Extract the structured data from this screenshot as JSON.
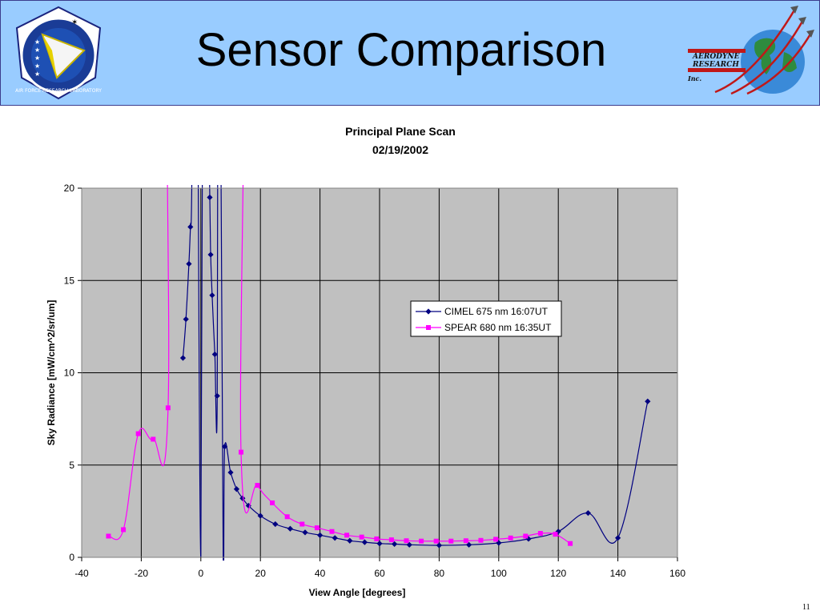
{
  "slide": {
    "title": "Sensor Comparison",
    "number": "11"
  },
  "logos": {
    "left": {
      "name": "air-force-research-laboratory-logo",
      "text": "AIR FORCE RESEARCH LABORATORY"
    },
    "right": {
      "name": "aerodyne-research-logo",
      "text_lines": [
        "AERODYNE",
        "RESEARCH",
        "Inc."
      ]
    }
  },
  "colors": {
    "header_bg": "#99ccff",
    "plot_bg": "#c0c0c0",
    "cimel": "#000080",
    "spear": "#ff00ff"
  },
  "chart_data": {
    "type": "line",
    "title": "Principal Plane Scan",
    "subtitle": "02/19/2002",
    "xlabel": "View Angle [degrees]",
    "ylabel": "Sky Radiance [mW/cm^2/sr/um]",
    "xlim": [
      -40,
      160
    ],
    "ylim": [
      0,
      20
    ],
    "xticks": [
      -40,
      -20,
      0,
      20,
      40,
      60,
      80,
      100,
      120,
      140,
      160
    ],
    "yticks": [
      0,
      5,
      10,
      15,
      20
    ],
    "grid": true,
    "legend": "center-right",
    "series": [
      {
        "name": "CIMEL 675 nm 16:07UT",
        "marker": "diamond",
        "points": [
          [
            -6,
            10.8
          ],
          [
            -5,
            12.9
          ],
          [
            -4,
            15.9
          ],
          [
            -3.5,
            17.9
          ],
          [
            -3,
            20.5
          ],
          [
            -2,
            40
          ],
          [
            -1.5,
            40
          ],
          [
            0,
            0
          ],
          [
            1,
            40
          ],
          [
            3,
            19.5
          ],
          [
            3.3,
            16.4
          ],
          [
            3.8,
            14.2
          ],
          [
            4.7,
            11.0
          ],
          [
            5.5,
            8.75
          ],
          [
            6,
            40
          ],
          [
            7.5,
            0
          ],
          [
            8,
            6.0
          ],
          [
            10,
            4.6
          ],
          [
            12,
            3.7
          ],
          [
            14,
            3.2
          ],
          [
            16,
            2.8
          ],
          [
            20,
            2.25
          ],
          [
            25,
            1.8
          ],
          [
            30,
            1.55
          ],
          [
            35,
            1.35
          ],
          [
            40,
            1.2
          ],
          [
            45,
            1.05
          ],
          [
            50,
            0.9
          ],
          [
            55,
            0.82
          ],
          [
            60,
            0.75
          ],
          [
            65,
            0.72
          ],
          [
            70,
            0.68
          ],
          [
            80,
            0.65
          ],
          [
            90,
            0.68
          ],
          [
            100,
            0.78
          ],
          [
            110,
            1.0
          ],
          [
            120,
            1.4
          ],
          [
            130,
            2.4
          ],
          [
            140,
            1.05
          ],
          [
            150,
            8.45
          ]
        ]
      },
      {
        "name": "SPEAR 680 nm 16:35UT",
        "marker": "square",
        "points": [
          [
            -31,
            1.15
          ],
          [
            -26,
            1.5
          ],
          [
            -21,
            6.7
          ],
          [
            -16,
            6.4
          ],
          [
            -11,
            8.1
          ],
          [
            -9.5,
            40
          ],
          [
            13,
            40
          ],
          [
            13.5,
            5.7
          ],
          [
            19,
            3.9
          ],
          [
            24,
            2.95
          ],
          [
            29,
            2.2
          ],
          [
            34,
            1.8
          ],
          [
            39,
            1.6
          ],
          [
            44,
            1.4
          ],
          [
            49,
            1.2
          ],
          [
            54,
            1.1
          ],
          [
            59,
            1.0
          ],
          [
            64,
            0.95
          ],
          [
            69,
            0.9
          ],
          [
            74,
            0.88
          ],
          [
            79,
            0.88
          ],
          [
            84,
            0.88
          ],
          [
            89,
            0.9
          ],
          [
            94,
            0.92
          ],
          [
            99,
            0.98
          ],
          [
            104,
            1.05
          ],
          [
            109,
            1.15
          ],
          [
            114,
            1.3
          ],
          [
            119,
            1.25
          ],
          [
            124,
            0.75
          ]
        ]
      }
    ]
  }
}
